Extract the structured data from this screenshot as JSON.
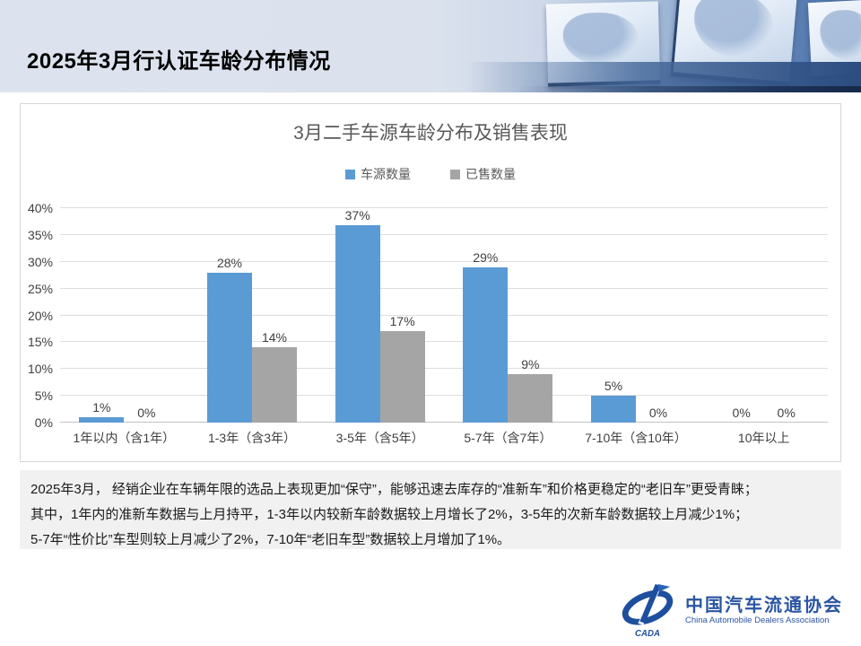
{
  "slide": {
    "title": "2025年3月行认证车龄分布情况"
  },
  "chart_data": {
    "type": "bar",
    "title": "3月二手车源车龄分布及销售表现",
    "categories": [
      "1年以内（含1年）",
      "1-3年（含3年）",
      "3-5年（含5年）",
      "5-7年（含7年）",
      "7-10年（含10年）",
      "10年以上"
    ],
    "series": [
      {
        "name": "车源数量",
        "color": "#5B9BD5",
        "values": [
          1,
          28,
          37,
          29,
          5,
          0
        ]
      },
      {
        "name": "已售数量",
        "color": "#A5A5A5",
        "values": [
          0,
          14,
          17,
          9,
          0,
          0
        ]
      }
    ],
    "value_suffix": "%",
    "ylim": [
      0,
      40
    ],
    "ytick_step": 5,
    "grid": true,
    "legend_position": "top",
    "xlabel": "",
    "ylabel": ""
  },
  "summary": {
    "lines": [
      "2025年3月， 经销企业在车辆年限的选品上表现更加“保守”，能够迅速去库存的“准新车”和价格更稳定的“老旧车”更受青睐；",
      "其中，1年内的准新车数据与上月持平，1-3年以内较新车龄数据较上月增长了2%，3-5年的次新车龄数据较上月减少1%；",
      "5-7年“性价比”车型则较上月减少了2%，7-10年“老旧车型”数据较上月增加了1%。"
    ]
  },
  "footer": {
    "org_name_cn": "中国汽车流通协会",
    "org_name_en": "China Automobile Dealers Association",
    "logo_text": "CADA"
  },
  "colors": {
    "accent_blue": "#5B9BD5",
    "accent_gray": "#A5A5A5",
    "logo_blue": "#1d4f9e",
    "summary_bg": "#f1f1f1"
  }
}
